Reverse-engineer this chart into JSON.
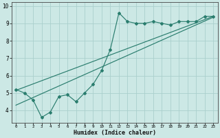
{
  "x_values": [
    0,
    1,
    2,
    3,
    4,
    5,
    6,
    7,
    8,
    9,
    10,
    11,
    12,
    13,
    14,
    15,
    16,
    17,
    18,
    19,
    20,
    21,
    22,
    23
  ],
  "line_y": [
    5.2,
    5.0,
    4.6,
    3.6,
    3.9,
    4.8,
    4.9,
    4.5,
    5.0,
    5.5,
    6.3,
    7.5,
    9.6,
    9.1,
    9.0,
    9.0,
    9.1,
    9.0,
    8.9,
    9.1,
    9.1,
    9.1,
    9.4,
    9.4
  ],
  "trend1_x": [
    0,
    23
  ],
  "trend1_y": [
    5.15,
    9.4
  ],
  "trend2_x": [
    0,
    23
  ],
  "trend2_y": [
    4.3,
    9.35
  ],
  "line_color": "#2a7d6e",
  "bg_color": "#cce8e5",
  "grid_color": "#aacfcc",
  "xlabel": "Humidex (Indice chaleur)",
  "ylim": [
    3.3,
    10.2
  ],
  "xlim": [
    -0.5,
    23.5
  ],
  "yticks": [
    4,
    5,
    6,
    7,
    8,
    9,
    10
  ],
  "xticks": [
    0,
    1,
    2,
    3,
    4,
    5,
    6,
    7,
    8,
    9,
    10,
    11,
    12,
    13,
    14,
    15,
    16,
    17,
    18,
    19,
    20,
    21,
    22,
    23
  ]
}
